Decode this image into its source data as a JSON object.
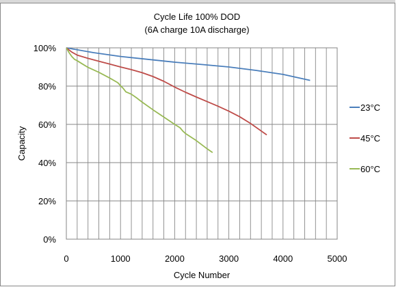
{
  "chart_data": {
    "type": "line",
    "title": "Cycle Life 100% DOD",
    "subtitle": "(6A charge 10A discharge)",
    "xlabel": "Cycle Number",
    "ylabel": "Capacity",
    "xlim": [
      0,
      5000
    ],
    "ylim": [
      0,
      100
    ],
    "x_ticks": [
      0,
      1000,
      2000,
      3000,
      4000,
      5000
    ],
    "x_tick_labels": [
      "0",
      "1000",
      "2000",
      "3000",
      "4000",
      "5000"
    ],
    "y_ticks": [
      0,
      20,
      40,
      60,
      80,
      100
    ],
    "y_tick_labels": [
      "0%",
      "20%",
      "40%",
      "60%",
      "80%",
      "100%"
    ],
    "x_grid_step": 200,
    "grid": true,
    "legend_position": "right",
    "series": [
      {
        "name": "23°C",
        "color": "#4a7ebb",
        "points": [
          [
            0,
            100
          ],
          [
            500,
            97.5
          ],
          [
            1000,
            95.5
          ],
          [
            1500,
            94
          ],
          [
            2000,
            92.5
          ],
          [
            2500,
            91.3
          ],
          [
            3000,
            90
          ],
          [
            3500,
            88.2
          ],
          [
            4000,
            86.1
          ],
          [
            4500,
            83
          ]
        ]
      },
      {
        "name": "45°C",
        "color": "#be4b48",
        "points": [
          [
            0,
            100
          ],
          [
            100,
            97.8
          ],
          [
            200,
            96.2
          ],
          [
            400,
            94.5
          ],
          [
            600,
            93
          ],
          [
            800,
            91.5
          ],
          [
            1000,
            90
          ],
          [
            1200,
            88.6
          ],
          [
            1400,
            87
          ],
          [
            1600,
            85
          ],
          [
            1800,
            82.5
          ],
          [
            2000,
            79.5
          ],
          [
            2200,
            76.8
          ],
          [
            2400,
            74.3
          ],
          [
            2600,
            71.9
          ],
          [
            2800,
            69.5
          ],
          [
            3000,
            66.9
          ],
          [
            3200,
            64
          ],
          [
            3400,
            60.5
          ],
          [
            3600,
            56.5
          ],
          [
            3700,
            54.5
          ]
        ]
      },
      {
        "name": "60°C",
        "color": "#98b954",
        "points": [
          [
            0,
            100
          ],
          [
            50,
            97.5
          ],
          [
            100,
            95.5
          ],
          [
            150,
            94
          ],
          [
            200,
            93.3
          ],
          [
            300,
            91.5
          ],
          [
            400,
            89.8
          ],
          [
            600,
            87.2
          ],
          [
            800,
            84.2
          ],
          [
            950,
            81.8
          ],
          [
            1000,
            80.2
          ],
          [
            1050,
            78.8
          ],
          [
            1100,
            77
          ],
          [
            1200,
            75.8
          ],
          [
            1300,
            73.8
          ],
          [
            1400,
            71.6
          ],
          [
            1600,
            67.6
          ],
          [
            1800,
            63.8
          ],
          [
            2000,
            60
          ],
          [
            2100,
            58.2
          ],
          [
            2150,
            56.5
          ],
          [
            2200,
            55.2
          ],
          [
            2400,
            51.5
          ],
          [
            2600,
            47.2
          ],
          [
            2700,
            45.3
          ]
        ]
      }
    ]
  }
}
